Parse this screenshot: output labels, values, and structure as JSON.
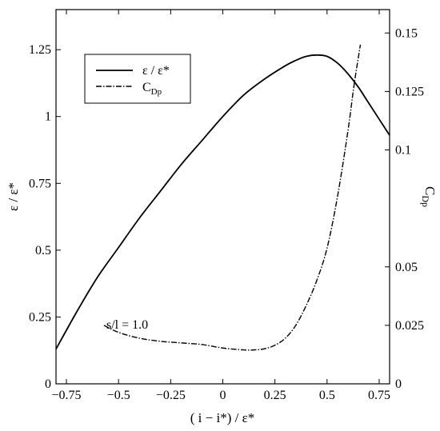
{
  "chart_data": {
    "type": "line",
    "title": "",
    "xlabel": "( i − i*) / ε*",
    "ylabel_left": "ε / ε*",
    "ylabel_right": "C_Dp",
    "xlim": [
      -0.8,
      0.8
    ],
    "ylim_left": [
      0,
      1.4
    ],
    "ylim_right": [
      0,
      0.16
    ],
    "x_ticks": [
      -0.75,
      -0.5,
      -0.25,
      0,
      0.25,
      0.5,
      0.75
    ],
    "x_tick_labels": [
      "−0.75",
      "−0.5",
      "−0.25",
      "0",
      "0.25",
      "0.5",
      "0.75"
    ],
    "y_left_ticks": [
      0,
      0.25,
      0.5,
      0.75,
      1,
      1.25
    ],
    "y_left_tick_labels": [
      "0",
      "0.25",
      "0.5",
      "0.75",
      "1",
      "1.25"
    ],
    "y_right_ticks": [
      0,
      0.025,
      0.05,
      0.1,
      0.125,
      0.15
    ],
    "y_right_tick_labels": [
      "0",
      "0.025",
      "0.05",
      "0.1",
      "0.125",
      "0.15"
    ],
    "grid": false,
    "legend_position": "top-left",
    "legend": [
      {
        "label": "ε / ε*",
        "style": "solid"
      },
      {
        "label": "C_Dp",
        "style": "dash-dot"
      }
    ],
    "annotations": [
      {
        "text": "s/l = 1.0",
        "x": -0.57,
        "y_left": 0.25
      }
    ],
    "series": [
      {
        "name": "ε / ε*",
        "axis": "left",
        "style": "solid",
        "x": [
          -0.8,
          -0.7,
          -0.6,
          -0.5,
          -0.4,
          -0.3,
          -0.2,
          -0.1,
          0.0,
          0.1,
          0.2,
          0.3,
          0.35,
          0.4,
          0.45,
          0.5,
          0.55,
          0.6,
          0.65,
          0.7,
          0.75,
          0.8
        ],
        "y": [
          0.13,
          0.27,
          0.4,
          0.51,
          0.62,
          0.72,
          0.82,
          0.91,
          1.0,
          1.08,
          1.14,
          1.19,
          1.21,
          1.225,
          1.23,
          1.225,
          1.2,
          1.16,
          1.11,
          1.05,
          0.99,
          0.93
        ]
      },
      {
        "name": "C_Dp",
        "axis": "right",
        "style": "dash-dot",
        "x": [
          -0.57,
          -0.5,
          -0.4,
          -0.3,
          -0.2,
          -0.1,
          0.0,
          0.1,
          0.15,
          0.2,
          0.25,
          0.3,
          0.35,
          0.4,
          0.45,
          0.5,
          0.55,
          0.6,
          0.63,
          0.66
        ],
        "y": [
          0.025,
          0.022,
          0.0195,
          0.0182,
          0.0175,
          0.0168,
          0.0153,
          0.0145,
          0.0145,
          0.015,
          0.0165,
          0.0195,
          0.025,
          0.0335,
          0.044,
          0.058,
          0.08,
          0.108,
          0.128,
          0.145
        ]
      }
    ]
  }
}
